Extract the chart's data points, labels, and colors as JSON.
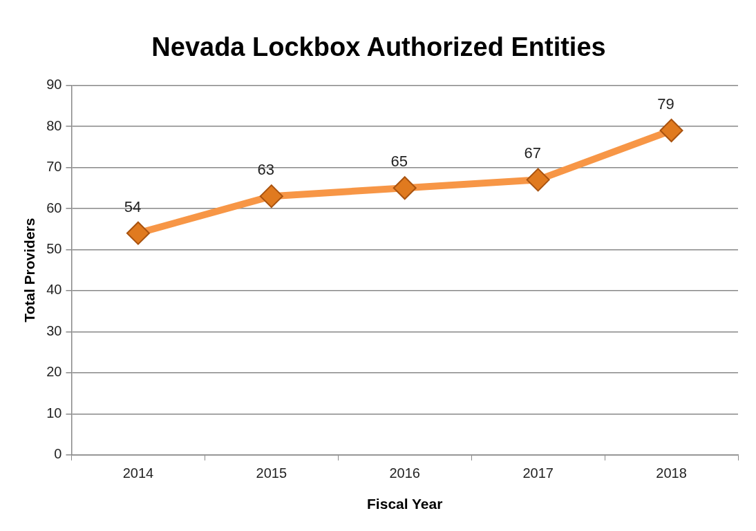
{
  "chart_data": {
    "type": "line",
    "title": "Nevada Lockbox Authorized Entities",
    "xlabel": "Fiscal Year",
    "ylabel": "Total Providers",
    "categories": [
      "2014",
      "2015",
      "2016",
      "2017",
      "2018"
    ],
    "series": [
      {
        "color": "#f79646",
        "values": [
          54,
          63,
          65,
          67,
          79
        ]
      }
    ],
    "ylim": [
      0,
      90
    ],
    "yticks": [
      0,
      10,
      20,
      30,
      40,
      50,
      60,
      70,
      80,
      90
    ],
    "grid": "y",
    "legend": false,
    "marker": "diamond",
    "line_style": "solid",
    "data_labels": true
  }
}
